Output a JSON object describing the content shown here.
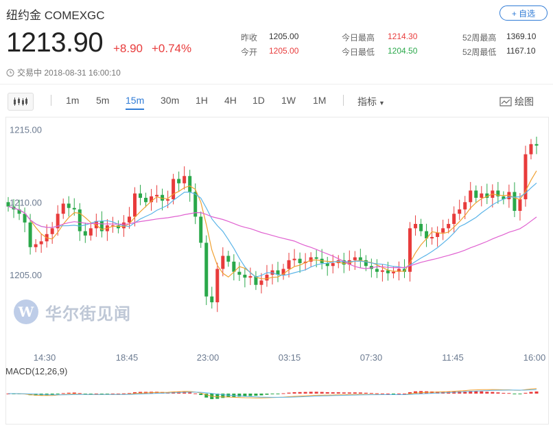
{
  "header": {
    "title": "纽约金 COMEXGC",
    "fav_label": "+ 自选",
    "price": "1213.90",
    "change": "+8.90",
    "change_pct": "+0.74%",
    "status": "交易中 2018-08-31 16:00:10"
  },
  "stats": {
    "prev_close_label": "昨收",
    "prev_close": "1205.00",
    "open_label": "今开",
    "open": "1205.00",
    "high_label": "今日最高",
    "high": "1214.30",
    "low_label": "今日最低",
    "low": "1204.50",
    "w52_high_label": "52周最高",
    "w52_high": "1369.10",
    "w52_low_label": "52周最低",
    "w52_low": "1167.10"
  },
  "toolbar": {
    "timeframes": [
      "1m",
      "5m",
      "15m",
      "30m",
      "1H",
      "4H",
      "1D",
      "1W",
      "1M"
    ],
    "active": "15m",
    "indicator_label": "指标",
    "draw_label": "绘图"
  },
  "watermark": "华尔街见闻",
  "macd_label": "MACD(12,26,9)",
  "colors": {
    "up": "#e83b3b",
    "down": "#2aa84a",
    "accent": "#2f7bd6",
    "ma_short": "#f0a030",
    "ma_mid": "#5ab4e8",
    "ma_long": "#e060d0"
  },
  "chart_data": {
    "type": "candlestick",
    "y_ticks": [
      "1215.00",
      "1210.00",
      "1205.00"
    ],
    "x_ticks": [
      "14:30",
      "18:45",
      "23:00",
      "03:15",
      "07:30",
      "11:45",
      "16:00"
    ],
    "ylim": [
      1200.5,
      1215.6
    ],
    "closes": [
      1209.7,
      1209.5,
      1209.2,
      1208.6,
      1206.9,
      1207.1,
      1207.3,
      1207.8,
      1208.2,
      1209.2,
      1209.9,
      1209.6,
      1209.5,
      1208.0,
      1207.7,
      1208.2,
      1208.7,
      1208.0,
      1208.4,
      1208.4,
      1208.2,
      1208.6,
      1209.0,
      1210.6,
      1210.3,
      1210.0,
      1210.4,
      1210.5,
      1210.1,
      1210.2,
      1211.6,
      1211.3,
      1211.8,
      1210.7,
      1209.0,
      1207.2,
      1203.5,
      1203.1,
      1205.4,
      1206.3,
      1205.9,
      1205.2,
      1205.0,
      1204.8,
      1204.9,
      1204.3,
      1204.6,
      1205.0,
      1205.3,
      1205.0,
      1205.4,
      1206.0,
      1206.1,
      1205.8,
      1205.9,
      1206.2,
      1206.1,
      1205.8,
      1205.6,
      1205.8,
      1206.0,
      1205.7,
      1206.0,
      1206.2,
      1206.0,
      1205.6,
      1205.4,
      1205.2,
      1205.3,
      1205.1,
      1205.2,
      1205.4,
      1205.2,
      1208.2,
      1208.5,
      1208.0,
      1207.5,
      1207.6,
      1207.9,
      1208.2,
      1208.5,
      1209.2,
      1209.5,
      1210.0,
      1210.8,
      1210.3,
      1210.6,
      1210.3,
      1210.8,
      1210.4,
      1210.2,
      1210.7,
      1209.4,
      1210.2,
      1213.3,
      1214.0,
      1213.9
    ],
    "ma_periods": [
      5,
      10,
      30
    ]
  }
}
